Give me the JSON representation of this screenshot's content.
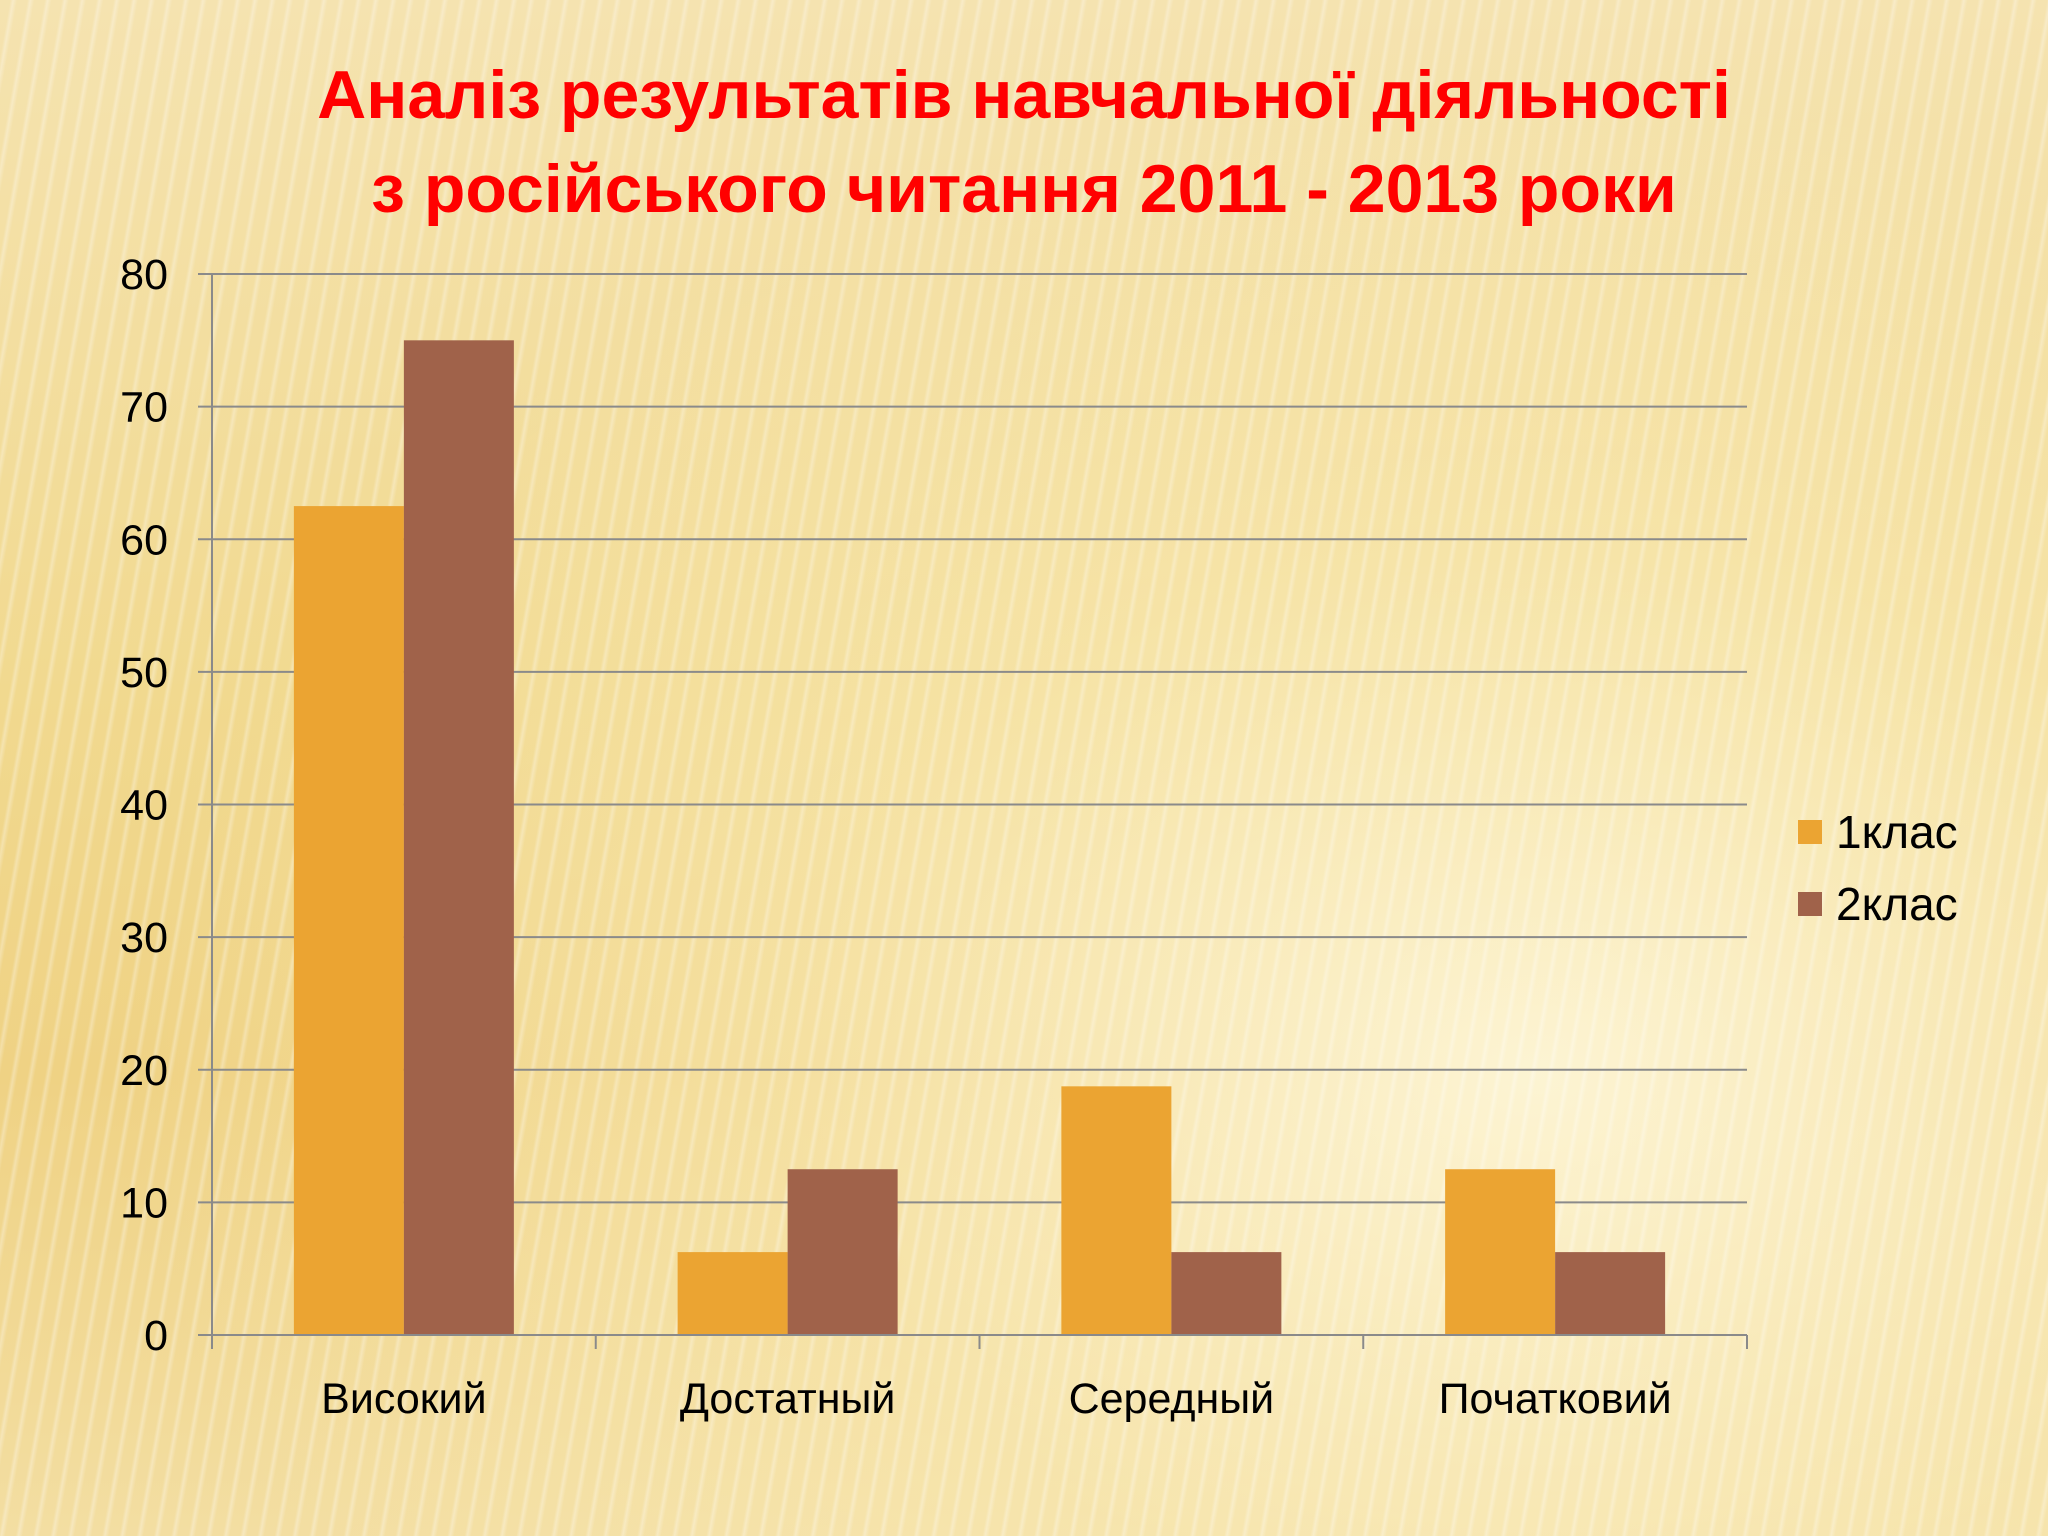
{
  "title": {
    "line1": "Аналіз результатів навчальної діяльності",
    "line2": "з російського читання 2011 - 2013 роки"
  },
  "colors": {
    "series1": "#eba432",
    "series2": "#a0624a",
    "grid": "#8a8a8a",
    "title": "#ff0000"
  },
  "chart_data": {
    "type": "bar",
    "title": "Аналіз результатів навчальної діяльності з російського читання 2011 - 2013 роки",
    "categories": [
      "Високий",
      "Достатный",
      "Середный",
      "Початковий"
    ],
    "series": [
      {
        "name": "1клас",
        "values": [
          62.5,
          6.25,
          18.75,
          12.5
        ]
      },
      {
        "name": "2клас",
        "values": [
          75,
          12.5,
          6.25,
          6.25
        ]
      }
    ],
    "ylim": [
      0,
      80
    ],
    "yticks": [
      0,
      10,
      20,
      30,
      40,
      50,
      60,
      70,
      80
    ],
    "xlabel": "",
    "ylabel": "",
    "grid": true,
    "legend": "right"
  }
}
